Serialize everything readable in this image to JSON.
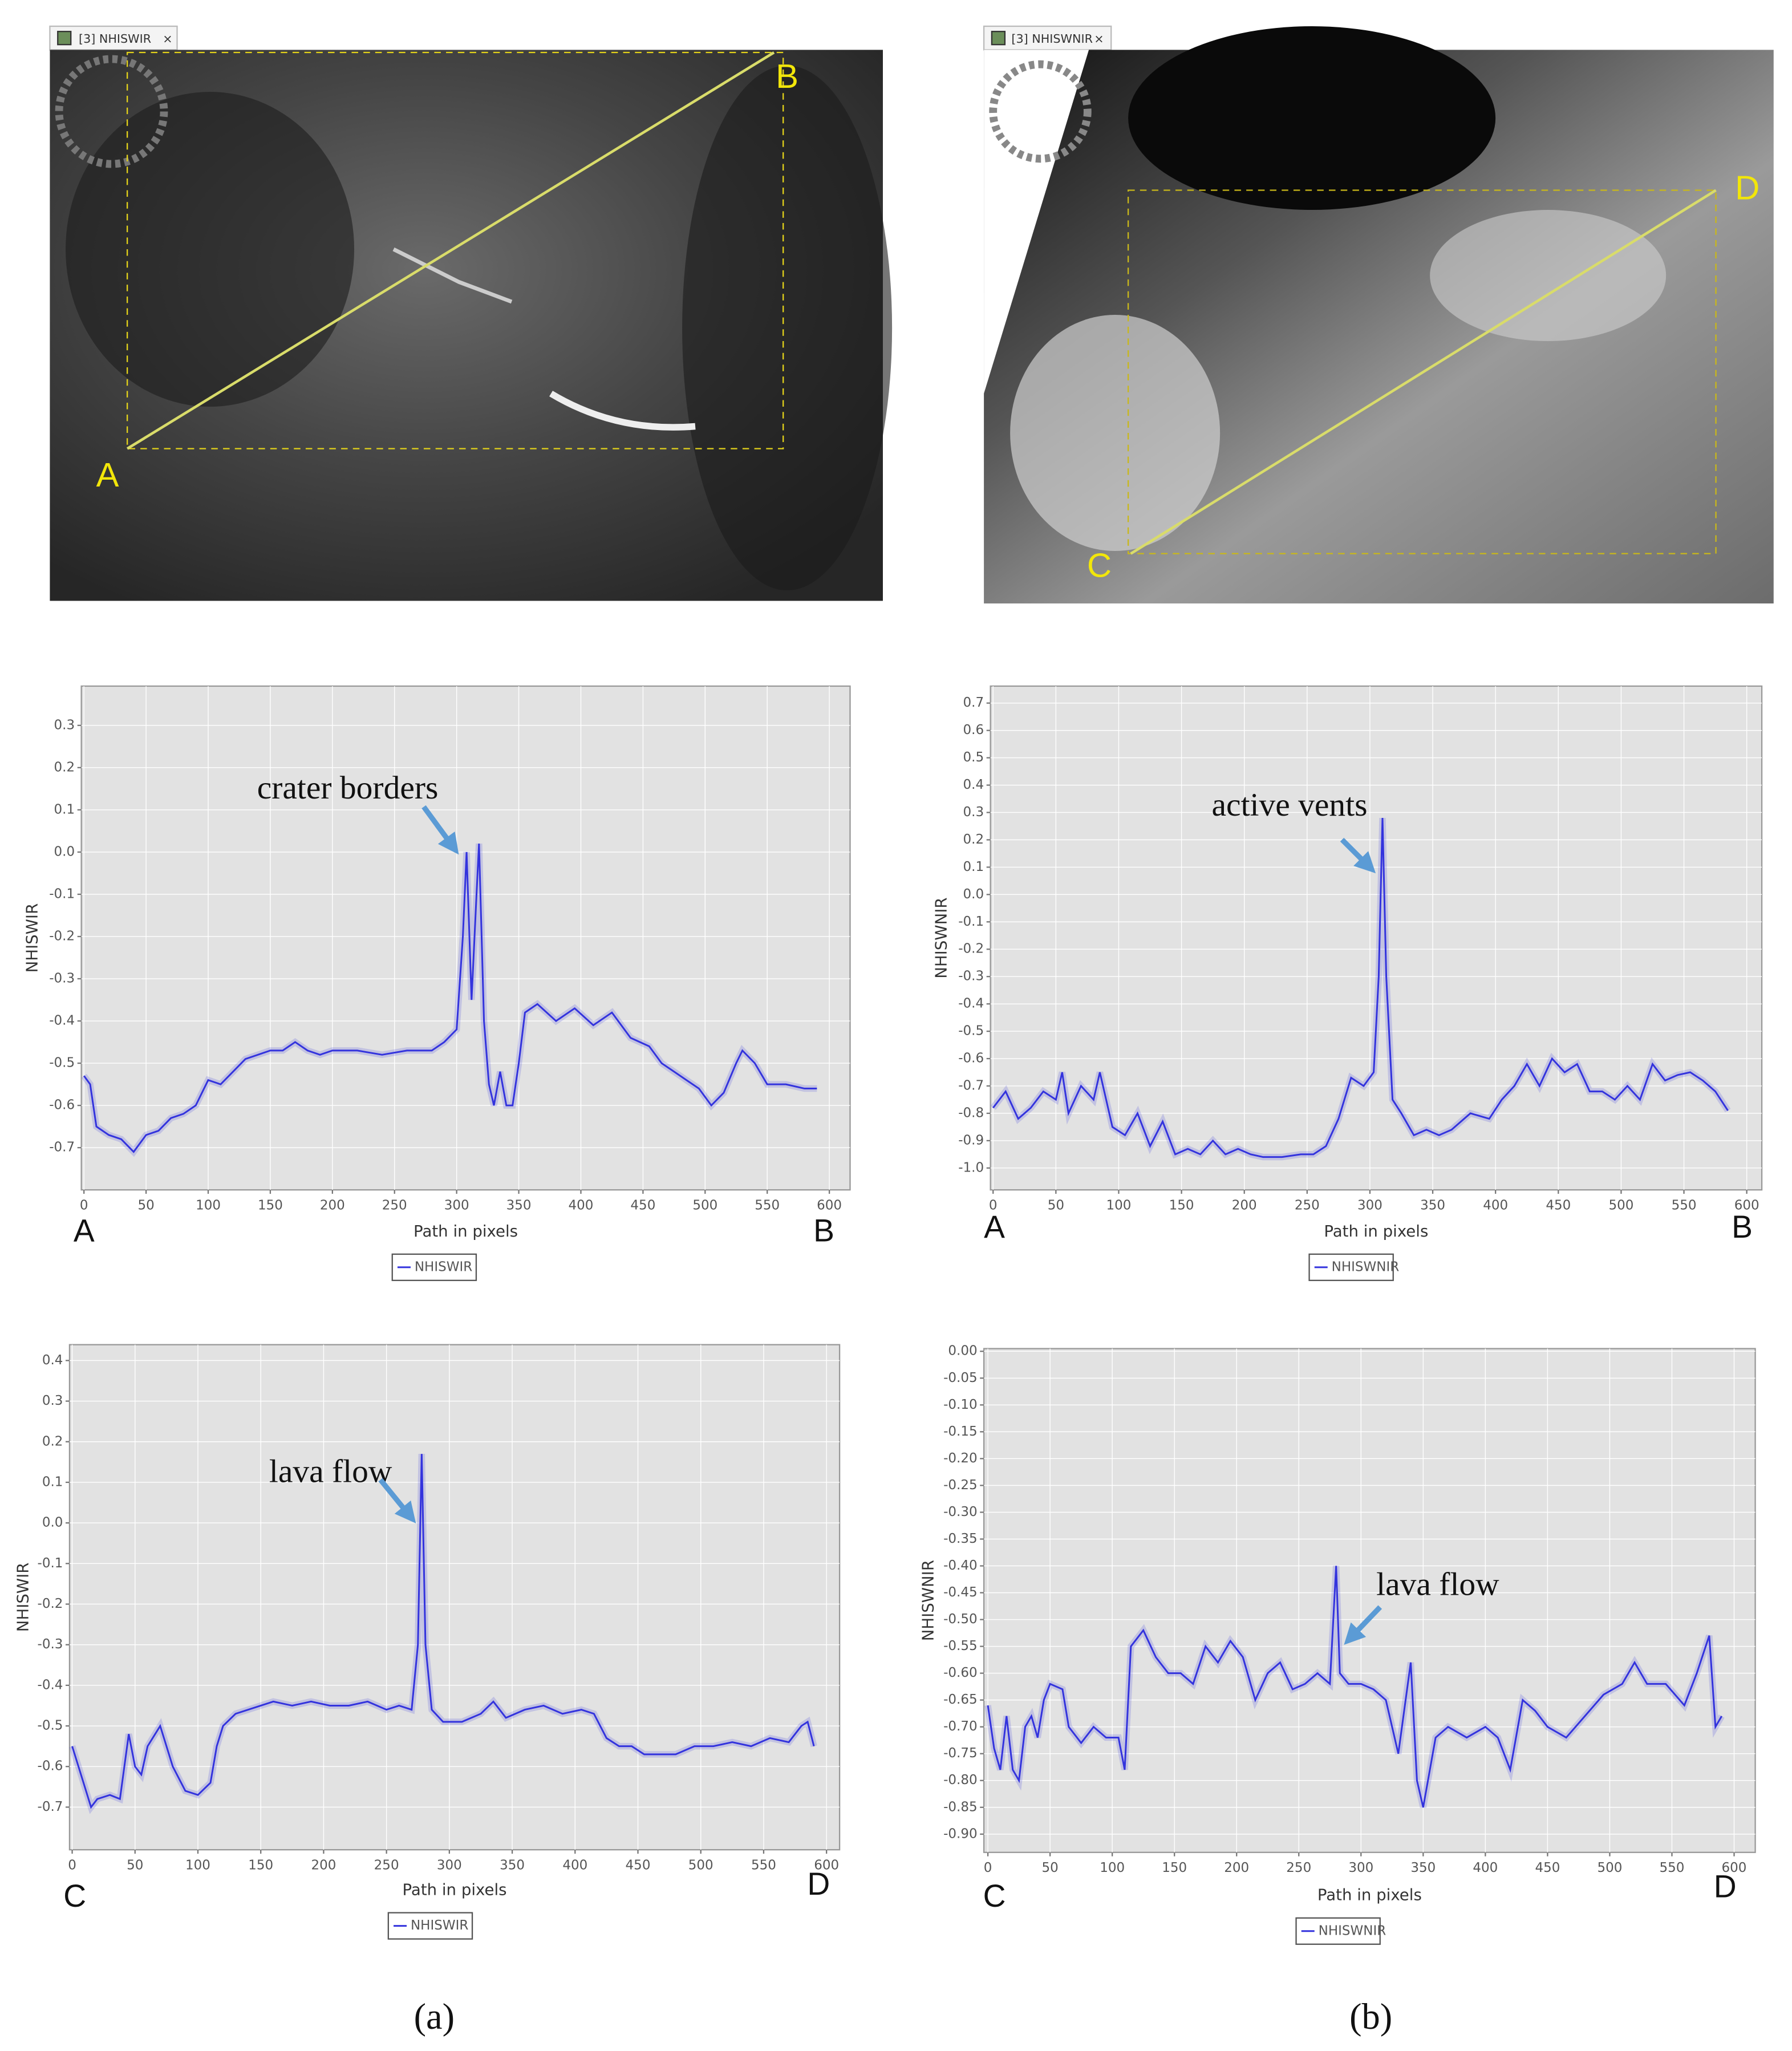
{
  "images": [
    {
      "tab": "[3] NHISWIR",
      "labels": [
        "A",
        "B"
      ]
    },
    {
      "tab": "[3] NHISWNIR",
      "labels": [
        "C",
        "D"
      ]
    }
  ],
  "captions": [
    "(a)",
    "(b)"
  ],
  "chart_data": [
    {
      "type": "line",
      "y_label": "NHISWIR",
      "x_label": "Path in pixels",
      "annotation": "crater borders",
      "start_label": "A",
      "end_label": "B",
      "x": [
        0,
        5,
        10,
        20,
        30,
        40,
        50,
        60,
        70,
        80,
        90,
        100,
        110,
        120,
        130,
        140,
        150,
        160,
        170,
        180,
        190,
        200,
        220,
        240,
        260,
        280,
        290,
        300,
        305,
        308,
        312,
        316,
        318,
        322,
        326,
        330,
        335,
        340,
        345,
        350,
        355,
        365,
        380,
        395,
        410,
        425,
        440,
        455,
        465,
        475,
        485,
        495,
        505,
        515,
        525,
        530,
        540,
        550,
        565,
        580,
        590
      ],
      "series": [
        {
          "name": "NHISWIR",
          "color": "#3333dd",
          "values": [
            -0.53,
            -0.55,
            -0.65,
            -0.67,
            -0.68,
            -0.71,
            -0.67,
            -0.66,
            -0.63,
            -0.62,
            -0.6,
            -0.54,
            -0.55,
            -0.52,
            -0.49,
            -0.48,
            -0.47,
            -0.47,
            -0.45,
            -0.47,
            -0.48,
            -0.47,
            -0.47,
            -0.48,
            -0.47,
            -0.47,
            -0.45,
            -0.42,
            -0.2,
            0.0,
            -0.35,
            -0.1,
            0.02,
            -0.4,
            -0.55,
            -0.6,
            -0.52,
            -0.6,
            -0.6,
            -0.5,
            -0.38,
            -0.36,
            -0.4,
            -0.37,
            -0.41,
            -0.38,
            -0.44,
            -0.46,
            -0.5,
            -0.52,
            -0.54,
            -0.56,
            -0.6,
            -0.57,
            -0.5,
            -0.47,
            -0.5,
            -0.55,
            -0.55,
            -0.56,
            -0.56
          ]
        }
      ],
      "xlim": [
        -2.1,
        616.7
      ],
      "xticks": [
        0,
        50,
        100,
        150,
        200,
        250,
        300,
        350,
        400,
        450,
        500,
        550,
        600
      ],
      "ylim": [
        -0.8,
        0.393
      ],
      "yticks": [
        0.3,
        0.2,
        0.1,
        {
          "value": 0,
          "label": "0.0"
        },
        -0.1,
        -0.2,
        -0.3,
        -0.4,
        -0.5,
        -0.6,
        -0.7
      ]
    },
    {
      "type": "line",
      "y_label": "NHISWNIR",
      "x_label": "Path in pixels",
      "annotation": "active vents",
      "start_label": "A",
      "end_label": "B",
      "x": [
        0,
        10,
        20,
        30,
        40,
        50,
        55,
        60,
        70,
        80,
        85,
        95,
        105,
        115,
        125,
        135,
        145,
        155,
        165,
        175,
        185,
        195,
        205,
        215,
        230,
        245,
        255,
        265,
        275,
        285,
        295,
        303,
        307,
        310,
        313,
        318,
        325,
        335,
        345,
        355,
        365,
        380,
        395,
        405,
        415,
        425,
        435,
        445,
        455,
        465,
        475,
        485,
        495,
        505,
        515,
        525,
        535,
        545,
        555,
        565,
        575,
        585
      ],
      "series": [
        {
          "name": "NHISWNIR",
          "color": "#3333dd",
          "values": [
            -0.78,
            -0.72,
            -0.82,
            -0.78,
            -0.72,
            -0.75,
            -0.65,
            -0.8,
            -0.7,
            -0.75,
            -0.65,
            -0.85,
            -0.88,
            -0.8,
            -0.92,
            -0.83,
            -0.95,
            -0.93,
            -0.95,
            -0.9,
            -0.95,
            -0.93,
            -0.95,
            -0.96,
            -0.96,
            -0.95,
            -0.95,
            -0.92,
            -0.82,
            -0.67,
            -0.7,
            -0.65,
            -0.3,
            0.28,
            -0.3,
            -0.75,
            -0.8,
            -0.88,
            -0.86,
            -0.88,
            -0.86,
            -0.8,
            -0.82,
            -0.75,
            -0.7,
            -0.62,
            -0.7,
            -0.6,
            -0.65,
            -0.62,
            -0.72,
            -0.72,
            -0.75,
            -0.7,
            -0.75,
            -0.62,
            -0.68,
            -0.66,
            -0.65,
            -0.68,
            -0.72,
            -0.79
          ]
        }
      ],
      "xlim": [
        -2.1,
        612
      ],
      "xticks": [
        0,
        50,
        100,
        150,
        200,
        250,
        300,
        350,
        400,
        450,
        500,
        550,
        600
      ],
      "ylim": [
        -1.08,
        0.762
      ],
      "yticks": [
        0.7,
        0.6,
        0.5,
        0.4,
        0.3,
        0.2,
        0.1,
        {
          "value": 0,
          "label": "0.0"
        },
        -0.1,
        -0.2,
        -0.3,
        -0.4,
        -0.5,
        -0.6,
        -0.7,
        -0.8,
        -0.9,
        {
          "value": -1,
          "label": "-1.0"
        }
      ]
    },
    {
      "type": "line",
      "y_label": "NHISWIR",
      "x_label": "Path in pixels",
      "annotation": "lava flow",
      "start_label": "C",
      "end_label": "D",
      "x": [
        0,
        5,
        10,
        15,
        20,
        30,
        38,
        45,
        50,
        55,
        60,
        70,
        80,
        90,
        100,
        110,
        115,
        120,
        130,
        140,
        150,
        160,
        175,
        190,
        205,
        220,
        235,
        250,
        260,
        270,
        275,
        278,
        281,
        286,
        295,
        310,
        325,
        335,
        345,
        360,
        375,
        390,
        405,
        415,
        425,
        435,
        445,
        455,
        465,
        480,
        495,
        510,
        525,
        540,
        555,
        570,
        580,
        585,
        590
      ],
      "series": [
        {
          "name": "NHISWIR",
          "color": "#3333dd",
          "values": [
            -0.55,
            -0.6,
            -0.65,
            -0.7,
            -0.68,
            -0.67,
            -0.68,
            -0.52,
            -0.6,
            -0.62,
            -0.55,
            -0.5,
            -0.6,
            -0.66,
            -0.67,
            -0.64,
            -0.55,
            -0.5,
            -0.47,
            -0.46,
            -0.45,
            -0.44,
            -0.45,
            -0.44,
            -0.45,
            -0.45,
            -0.44,
            -0.46,
            -0.45,
            -0.46,
            -0.3,
            0.17,
            -0.3,
            -0.46,
            -0.49,
            -0.49,
            -0.47,
            -0.44,
            -0.48,
            -0.46,
            -0.45,
            -0.47,
            -0.46,
            -0.47,
            -0.53,
            -0.55,
            -0.55,
            -0.57,
            -0.57,
            -0.57,
            -0.55,
            -0.55,
            -0.54,
            -0.55,
            -0.53,
            -0.54,
            -0.5,
            -0.49,
            -0.55
          ]
        }
      ],
      "xlim": [
        -2.1,
        610.4
      ],
      "xticks": [
        0,
        50,
        100,
        150,
        200,
        250,
        300,
        350,
        400,
        450,
        500,
        550,
        600
      ],
      "ylim": [
        -0.805,
        0.439
      ],
      "yticks": [
        0.4,
        0.3,
        0.2,
        0.1,
        {
          "value": 0,
          "label": "0.0"
        },
        -0.1,
        -0.2,
        -0.3,
        -0.4,
        -0.5,
        -0.6,
        -0.7
      ]
    },
    {
      "type": "line",
      "y_label": "NHISWNIR",
      "x_label": "Path in pixels",
      "annotation": "lava flow",
      "start_label": "C",
      "end_label": "D",
      "x": [
        0,
        5,
        10,
        15,
        20,
        25,
        30,
        35,
        40,
        45,
        50,
        60,
        65,
        75,
        85,
        95,
        105,
        110,
        115,
        125,
        135,
        145,
        155,
        165,
        175,
        185,
        195,
        205,
        215,
        225,
        235,
        245,
        255,
        265,
        275,
        280,
        283,
        290,
        300,
        310,
        320,
        330,
        340,
        345,
        350,
        360,
        370,
        385,
        400,
        410,
        420,
        430,
        440,
        450,
        465,
        480,
        495,
        510,
        520,
        530,
        545,
        560,
        570,
        580,
        585,
        590
      ],
      "series": [
        {
          "name": "NHISWNIR",
          "color": "#3333dd",
          "values": [
            -0.66,
            -0.74,
            -0.78,
            -0.68,
            -0.78,
            -0.8,
            -0.7,
            -0.68,
            -0.72,
            -0.65,
            -0.62,
            -0.63,
            -0.7,
            -0.73,
            -0.7,
            -0.72,
            -0.72,
            -0.78,
            -0.55,
            -0.52,
            -0.57,
            -0.6,
            -0.6,
            -0.62,
            -0.55,
            -0.58,
            -0.54,
            -0.57,
            -0.65,
            -0.6,
            -0.58,
            -0.63,
            -0.62,
            -0.6,
            -0.62,
            -0.4,
            -0.6,
            -0.62,
            -0.62,
            -0.63,
            -0.65,
            -0.75,
            -0.58,
            -0.8,
            -0.85,
            -0.72,
            -0.7,
            -0.72,
            -0.7,
            -0.72,
            -0.78,
            -0.65,
            -0.67,
            -0.7,
            -0.72,
            -0.68,
            -0.64,
            -0.62,
            -0.58,
            -0.62,
            -0.62,
            -0.66,
            -0.6,
            -0.53,
            -0.7,
            -0.68
          ]
        }
      ],
      "xlim": [
        -3.2,
        617
      ],
      "xticks": [
        0,
        50,
        100,
        150,
        200,
        250,
        300,
        350,
        400,
        450,
        500,
        550,
        600
      ],
      "ylim": [
        -0.934,
        0.005
      ],
      "yticks": [
        {
          "value": 0,
          "label": "0.00"
        },
        {
          "value": -0.05,
          "label": "-0.05"
        },
        {
          "value": -0.1,
          "label": "-0.10"
        },
        {
          "value": -0.15,
          "label": "-0.15"
        },
        {
          "value": -0.2,
          "label": "-0.20"
        },
        {
          "value": -0.25,
          "label": "-0.25"
        },
        {
          "value": -0.3,
          "label": "-0.30"
        },
        {
          "value": -0.35,
          "label": "-0.35"
        },
        {
          "value": -0.4,
          "label": "-0.40"
        },
        {
          "value": -0.45,
          "label": "-0.45"
        },
        {
          "value": -0.5,
          "label": "-0.50"
        },
        {
          "value": -0.55,
          "label": "-0.55"
        },
        {
          "value": -0.6,
          "label": "-0.60"
        },
        {
          "value": -0.65,
          "label": "-0.65"
        },
        {
          "value": -0.7,
          "label": "-0.70"
        },
        {
          "value": -0.75,
          "label": "-0.75"
        },
        {
          "value": -0.8,
          "label": "-0.80"
        },
        {
          "value": -0.85,
          "label": "-0.85"
        },
        {
          "value": -0.9,
          "label": "-0.90"
        }
      ]
    }
  ]
}
